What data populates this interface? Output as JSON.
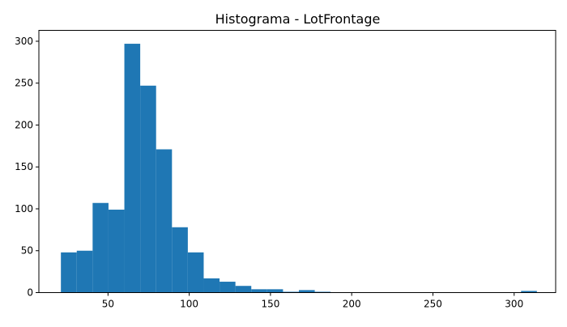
{
  "chart_data": {
    "type": "bar",
    "title": "Histograma - LotFrontage",
    "xlabel": "",
    "ylabel": "",
    "xlim": [
      7.45,
      325.55
    ],
    "ylim": [
      0,
      313
    ],
    "x_ticks": [
      50,
      100,
      150,
      200,
      250,
      300
    ],
    "y_ticks": [
      0,
      50,
      100,
      150,
      200,
      250,
      300
    ],
    "grid": false,
    "bar_color": "#1f77b4",
    "bin_edges": [
      21.0,
      30.77,
      40.53,
      50.3,
      60.07,
      69.83,
      79.6,
      89.37,
      99.13,
      108.9,
      118.67,
      128.43,
      138.2,
      147.97,
      157.73,
      167.5,
      177.27,
      187.03,
      196.8,
      206.57,
      216.33,
      226.1,
      235.87,
      245.63,
      255.4,
      265.17,
      274.93,
      284.7,
      294.47,
      304.23,
      314.0
    ],
    "counts": [
      48,
      50,
      107,
      99,
      297,
      247,
      171,
      78,
      48,
      17,
      13,
      8,
      4,
      4,
      1,
      3,
      1,
      0,
      0,
      0,
      0,
      0,
      0,
      0,
      0,
      0,
      0,
      0,
      0,
      2
    ]
  }
}
